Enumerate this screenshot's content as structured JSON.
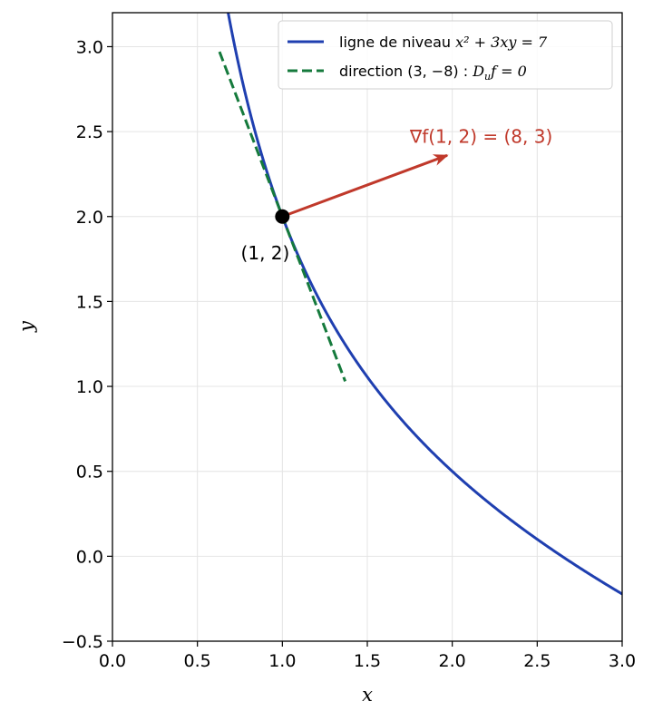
{
  "chart_data": {
    "type": "line",
    "xlabel": "x",
    "ylabel": "y",
    "xlim": [
      0.0,
      3.0
    ],
    "ylim": [
      -0.5,
      3.2
    ],
    "xticks": [
      "0.0",
      "0.5",
      "1.0",
      "1.5",
      "2.0",
      "2.5",
      "3.0"
    ],
    "yticks": [
      "−0.5",
      "0.0",
      "0.5",
      "1.0",
      "1.5",
      "2.0",
      "2.5",
      "3.0"
    ],
    "xtick_values": [
      0,
      0.5,
      1,
      1.5,
      2,
      2.5,
      3
    ],
    "ytick_values": [
      -0.5,
      0,
      0.5,
      1,
      1.5,
      2,
      2.5,
      3
    ],
    "grid": true,
    "legend_position": "top-right",
    "series": [
      {
        "name": "ligne de niveau x² + 3xy = 7",
        "legend_parts": {
          "prefix": "ligne de niveau ",
          "math": "x² + 3xy = 7"
        },
        "style": "solid",
        "color": "#1f3fb0",
        "equation": "y = (7 - x^2) / (3x)",
        "x": [
          0.7,
          0.8,
          0.9,
          1.0,
          1.25,
          1.5,
          1.75,
          2.0,
          2.25,
          2.5,
          2.75,
          3.0
        ],
        "y": [
          3.1,
          2.65,
          2.29,
          2.0,
          1.45,
          1.06,
          0.75,
          0.5,
          0.29,
          0.1,
          -0.07,
          -0.22
        ]
      },
      {
        "name": "direction (3, −8) : Duf = 0",
        "legend_parts": {
          "prefix": "direction (3, −8) : ",
          "math": "D",
          "sub": "u",
          "suffix": "f = 0"
        },
        "style": "dashed",
        "color": "#157a3c",
        "x": [
          0.63,
          1.37
        ],
        "y": [
          2.97,
          1.03
        ]
      }
    ],
    "point": {
      "x": 1,
      "y": 2,
      "label": "(1, 2)",
      "color": "#000000"
    },
    "arrow": {
      "from": [
        1,
        2
      ],
      "to": [
        1.97,
        2.36
      ],
      "color": "#c0392b",
      "label": "∇f(1, 2) = (8, 3)",
      "label_at": [
        1.75,
        2.47
      ]
    }
  }
}
